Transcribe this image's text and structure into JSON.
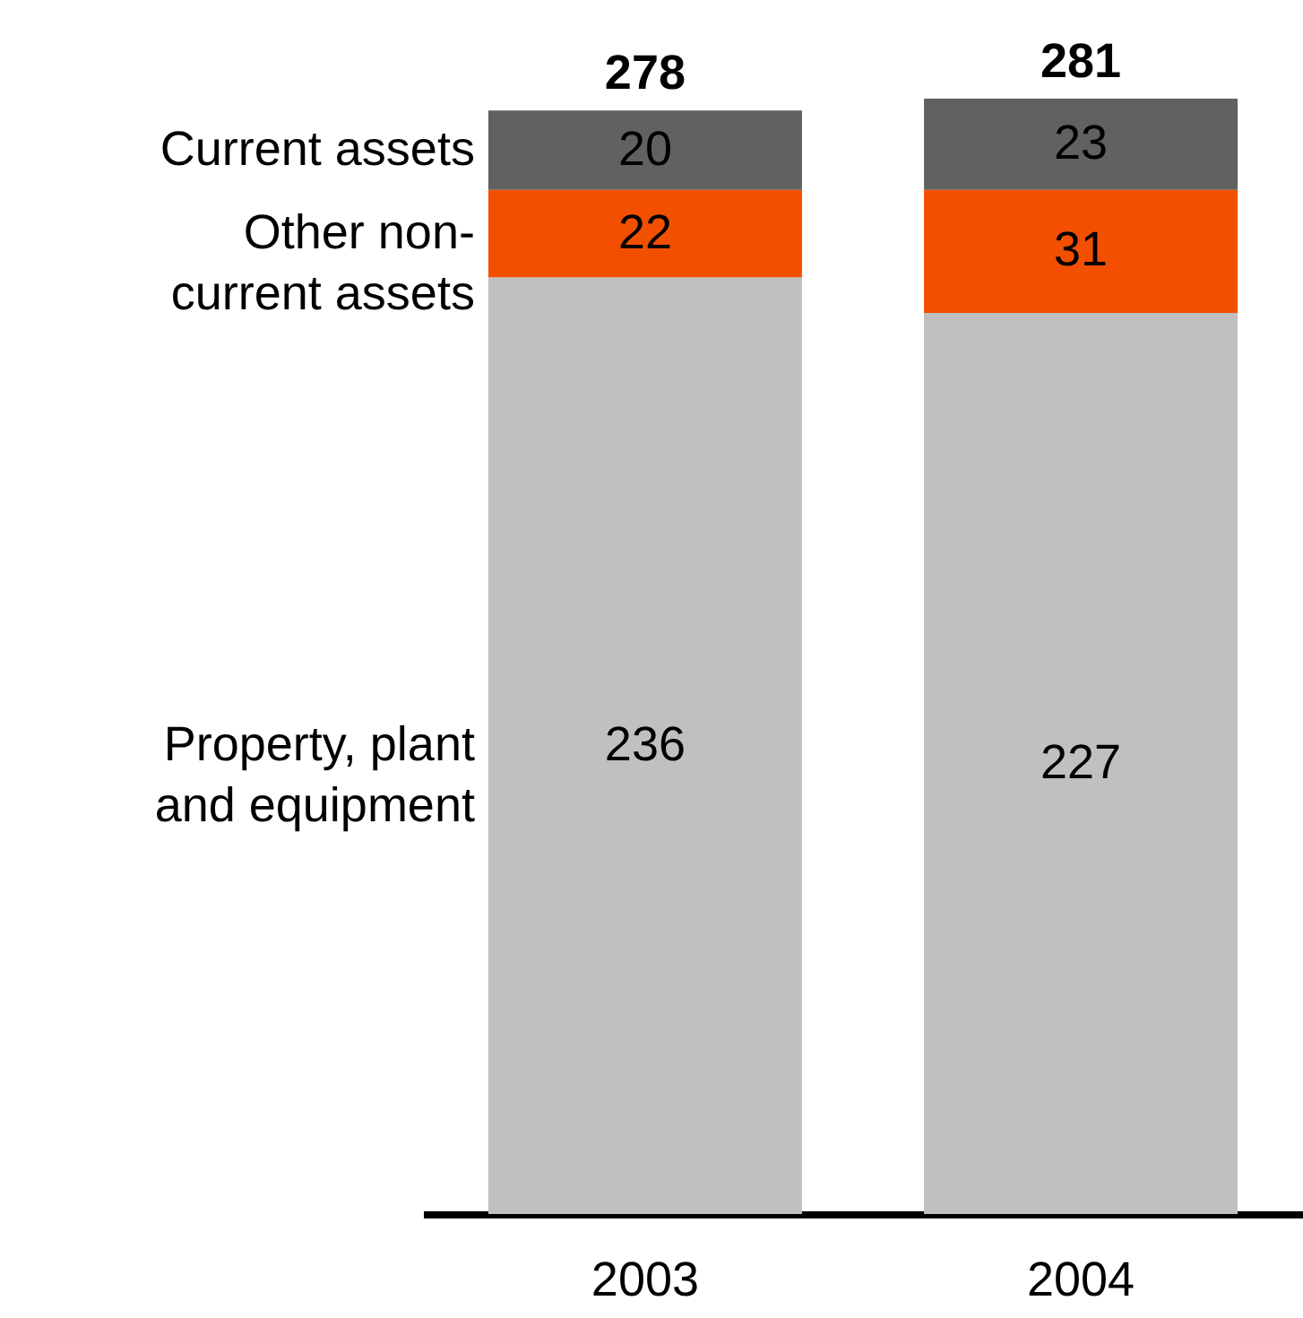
{
  "chart_data": {
    "type": "bar",
    "stacked": true,
    "data_labels": true,
    "categories": [
      "2003",
      "2004"
    ],
    "series": [
      {
        "name": "Property, plant and equipment",
        "color": "#c0c0c0",
        "values": [
          236,
          227
        ]
      },
      {
        "name": "Other non-current assets",
        "color": "#f25000",
        "values": [
          22,
          31
        ]
      },
      {
        "name": "Current assets",
        "color": "#616161",
        "values": [
          20,
          23
        ]
      }
    ],
    "totals": [
      "278",
      "281"
    ]
  }
}
